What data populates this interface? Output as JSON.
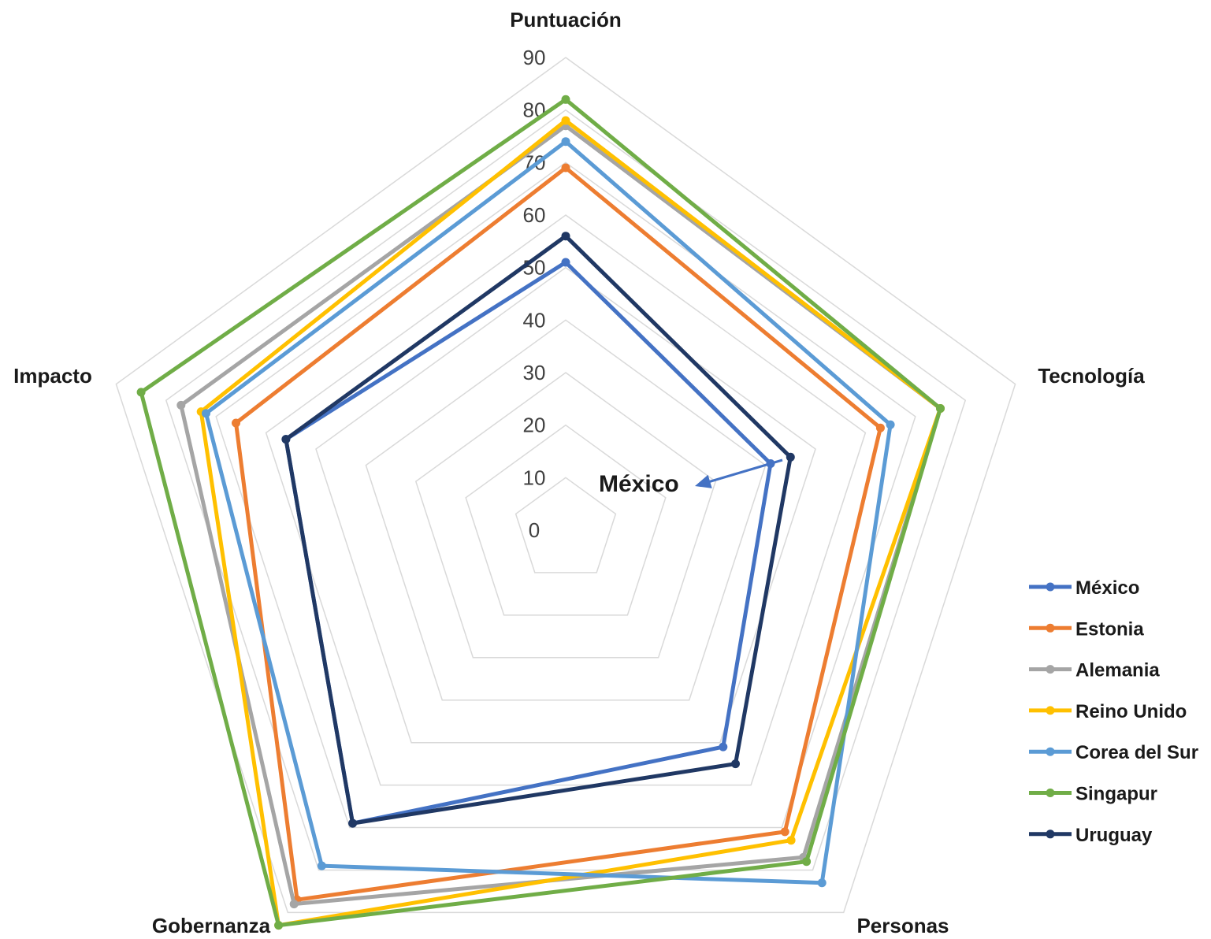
{
  "chart_data": {
    "type": "radar",
    "categories": [
      "Puntuación",
      "Tecnología",
      "Personas",
      "Gobernanza",
      "Impacto"
    ],
    "rlim": [
      0,
      90
    ],
    "ticks": [
      "0",
      "10",
      "20",
      "30",
      "40",
      "50",
      "60",
      "70",
      "80",
      "90"
    ],
    "grid": true,
    "legend_position": "right",
    "annotation": {
      "text": "México",
      "target_series": "México",
      "target_category": "Tecnología"
    },
    "series": [
      {
        "name": "México",
        "color": "#4472C4",
        "values": [
          51,
          41,
          51,
          69,
          56
        ]
      },
      {
        "name": "Estonia",
        "color": "#ED7D31",
        "values": [
          69,
          63,
          71,
          87,
          66
        ]
      },
      {
        "name": "Alemania",
        "color": "#A5A5A5",
        "values": [
          77,
          75,
          77,
          88,
          77
        ]
      },
      {
        "name": "Reino Unido",
        "color": "#FFC000",
        "values": [
          78,
          75,
          73,
          93,
          73
        ]
      },
      {
        "name": "Corea del Sur",
        "color": "#5B9BD5",
        "values": [
          74,
          65,
          83,
          79,
          72
        ]
      },
      {
        "name": "Singapur",
        "color": "#70AD47",
        "values": [
          82,
          75,
          78,
          93,
          85
        ]
      },
      {
        "name": "Uruguay",
        "color": "#203864",
        "values": [
          56,
          45,
          55,
          69,
          56
        ]
      }
    ]
  }
}
